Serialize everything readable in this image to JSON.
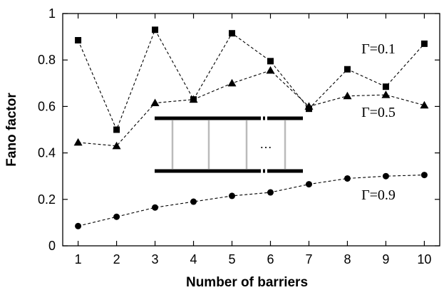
{
  "chart_data": {
    "type": "line",
    "xlabel": "Number of barriers",
    "ylabel": "Fano factor",
    "xlim": [
      0.6,
      10.4
    ],
    "ylim": [
      0,
      1
    ],
    "x": [
      1,
      2,
      3,
      4,
      5,
      6,
      7,
      8,
      9,
      10
    ],
    "xticks": [
      "1",
      "2",
      "3",
      "4",
      "5",
      "6",
      "7",
      "8",
      "9",
      "10"
    ],
    "yticks": [
      "0",
      "0.2",
      "0.4",
      "0.6",
      "0.8",
      "1"
    ],
    "ytick_values": [
      0,
      0.2,
      0.4,
      0.6,
      0.8,
      1
    ],
    "line_style": "dashed",
    "series": [
      {
        "name": "Γ=0.1",
        "marker": "square",
        "values": [
          0.885,
          0.5,
          0.93,
          0.63,
          0.915,
          0.795,
          0.59,
          0.76,
          0.685,
          0.87
        ]
      },
      {
        "name": "Γ=0.5",
        "marker": "triangle",
        "values": [
          0.445,
          0.43,
          0.615,
          0.63,
          0.7,
          0.755,
          0.6,
          0.645,
          0.65,
          0.605
        ]
      },
      {
        "name": "Γ=0.9",
        "marker": "circle",
        "values": [
          0.085,
          0.125,
          0.165,
          0.19,
          0.215,
          0.23,
          0.265,
          0.29,
          0.3,
          0.305
        ]
      }
    ],
    "inset": {
      "ellipsis": "…"
    },
    "colors": {
      "series": "#000000",
      "inset_rungs": "#bbbbbb",
      "inset_rails": "#000000"
    }
  }
}
